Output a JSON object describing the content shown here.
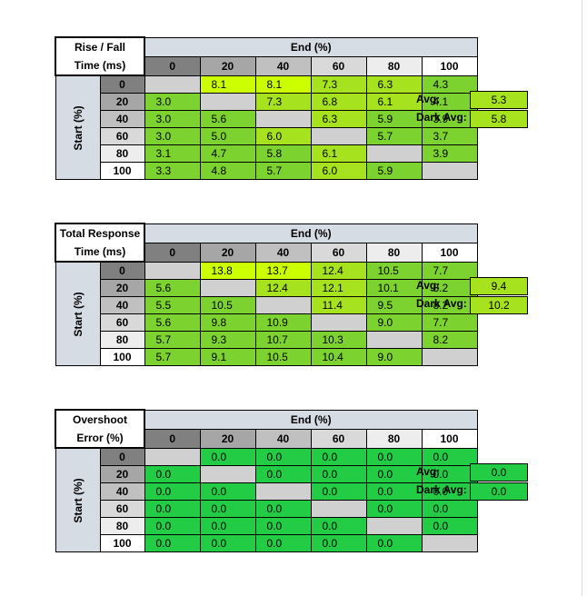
{
  "colors": {
    "shade_0": "#808080",
    "shade_20": "#a6a6a6",
    "shade_40": "#c0c0c0",
    "shade_60": "#d9d9d9",
    "shade_80": "#ededed",
    "shade_100": "#ffffff",
    "header_blue": "#d6dce4",
    "diag_gray": "#d0d0d0",
    "yellow": "#ccff00",
    "yellow_green": "#a6e21e",
    "green": "#7cd22e",
    "pure_green": "#22cc44"
  },
  "headers": {
    "end": "End (%)",
    "start": "Start (%)",
    "levels": [
      "0",
      "20",
      "40",
      "60",
      "80",
      "100"
    ],
    "avg": "Avg:",
    "dark_avg": "Dark Avg:"
  },
  "tables": [
    {
      "title_line1": "Rise / Fall",
      "title_line2": "Time (ms)",
      "avg": "5.3",
      "dark_avg": "5.8",
      "rows": [
        [
          "",
          "8.1",
          "8.1",
          "7.3",
          "6.3",
          "4.3"
        ],
        [
          "3.0",
          "",
          "7.3",
          "6.8",
          "6.1",
          "4.1"
        ],
        [
          "3.0",
          "5.6",
          "",
          "6.3",
          "5.9",
          "3.9"
        ],
        [
          "3.0",
          "5.0",
          "6.0",
          "",
          "5.7",
          "3.7"
        ],
        [
          "3.1",
          "4.7",
          "5.8",
          "6.1",
          "",
          "3.9"
        ],
        [
          "3.3",
          "4.8",
          "5.7",
          "6.0",
          "5.9",
          ""
        ]
      ]
    },
    {
      "title_line1": "Total Response",
      "title_line2": "Time (ms)",
      "avg": "9.4",
      "dark_avg": "10.2",
      "rows": [
        [
          "",
          "13.8",
          "13.7",
          "12.4",
          "10.5",
          "7.7"
        ],
        [
          "5.6",
          "",
          "12.4",
          "12.1",
          "10.1",
          "8.2"
        ],
        [
          "5.5",
          "10.5",
          "",
          "11.4",
          "9.5",
          "8.2"
        ],
        [
          "5.6",
          "9.8",
          "10.9",
          "",
          "9.0",
          "7.7"
        ],
        [
          "5.7",
          "9.3",
          "10.7",
          "10.3",
          "",
          "8.2"
        ],
        [
          "5.7",
          "9.1",
          "10.5",
          "10.4",
          "9.0",
          ""
        ]
      ]
    },
    {
      "title_line1": "Overshoot",
      "title_line2": "Error (%)",
      "avg": "0.0",
      "dark_avg": "0.0",
      "rows": [
        [
          "",
          "0.0",
          "0.0",
          "0.0",
          "0.0",
          "0.0"
        ],
        [
          "0.0",
          "",
          "0.0",
          "0.0",
          "0.0",
          "0.0"
        ],
        [
          "0.0",
          "0.0",
          "",
          "0.0",
          "0.0",
          "0.0"
        ],
        [
          "0.0",
          "0.0",
          "0.0",
          "",
          "0.0",
          "0.0"
        ],
        [
          "0.0",
          "0.0",
          "0.0",
          "0.0",
          "",
          "0.0"
        ],
        [
          "0.0",
          "0.0",
          "0.0",
          "0.0",
          "0.0",
          ""
        ]
      ]
    }
  ]
}
